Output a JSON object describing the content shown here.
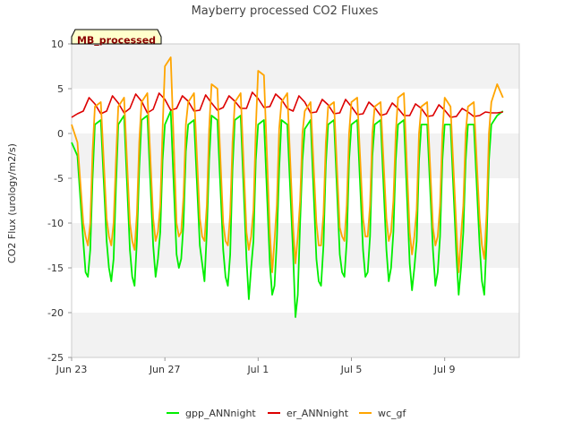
{
  "chart_data": {
    "type": "line",
    "title": "Mayberry processed CO2 Fluxes",
    "ylabel": "CO2 Flux (urology/m2/s)",
    "xlabel": "",
    "badge": "MB_processed",
    "x_start": "2016-06-23",
    "ylim": [
      -25,
      10
    ],
    "xlim": [
      0,
      19.2
    ],
    "yticks": [
      -25,
      -20,
      -15,
      -10,
      -5,
      0,
      5,
      10
    ],
    "xticks": [
      {
        "x": 0,
        "label": "Jun 23"
      },
      {
        "x": 4,
        "label": "Jun 27"
      },
      {
        "x": 8,
        "label": "Jul 1"
      },
      {
        "x": 12,
        "label": "Jul 5"
      },
      {
        "x": 16,
        "label": "Jul 9"
      }
    ],
    "grid": "alternating horizontal bands",
    "legend_position": "bottom",
    "colors": {
      "gpp": "#00ee00",
      "er": "#dd0000",
      "wc": "#ffa500"
    },
    "series": [
      {
        "name": "gpp_ANNnight",
        "color": "#00ee00",
        "x": [
          0.0,
          0.25,
          0.5,
          0.6,
          0.7,
          0.8,
          0.9,
          1.0,
          1.25,
          1.5,
          1.6,
          1.7,
          1.8,
          1.9,
          2.0,
          2.25,
          2.5,
          2.6,
          2.7,
          2.8,
          2.9,
          3.0,
          3.25,
          3.5,
          3.6,
          3.7,
          3.8,
          3.9,
          4.0,
          4.25,
          4.5,
          4.6,
          4.7,
          4.8,
          4.9,
          5.0,
          5.25,
          5.5,
          5.6,
          5.7,
          5.8,
          5.9,
          6.0,
          6.25,
          6.5,
          6.6,
          6.7,
          6.8,
          6.9,
          7.0,
          7.25,
          7.5,
          7.6,
          7.7,
          7.8,
          7.9,
          8.0,
          8.25,
          8.5,
          8.6,
          8.7,
          8.8,
          8.9,
          9.0,
          9.25,
          9.5,
          9.6,
          9.7,
          9.8,
          9.9,
          10.0,
          10.25,
          10.5,
          10.6,
          10.7,
          10.8,
          10.9,
          11.0,
          11.25,
          11.5,
          11.6,
          11.7,
          11.8,
          11.9,
          12.0,
          12.25,
          12.5,
          12.6,
          12.7,
          12.8,
          12.9,
          13.0,
          13.25,
          13.5,
          13.6,
          13.7,
          13.8,
          13.9,
          14.0,
          14.25,
          14.5,
          14.6,
          14.7,
          14.8,
          14.9,
          15.0,
          15.25,
          15.5,
          15.6,
          15.7,
          15.8,
          15.9,
          16.0,
          16.25,
          16.5,
          16.6,
          16.7,
          16.8,
          16.9,
          17.0,
          17.25,
          17.5,
          17.6,
          17.7,
          17.8,
          17.9,
          18.0,
          18.25,
          18.5
        ],
        "values": [
          -1.0,
          -2.5,
          -12.0,
          -15.5,
          -16.0,
          -13.0,
          -5.0,
          1.0,
          1.5,
          -12.0,
          -15.0,
          -16.5,
          -14.0,
          -6.0,
          1.0,
          2.0,
          -13.0,
          -16.0,
          -17.0,
          -12.0,
          -4.0,
          1.5,
          2.0,
          -12.5,
          -16.0,
          -14.0,
          -11.0,
          -3.0,
          1.0,
          2.5,
          -13.5,
          -15.0,
          -14.0,
          -10.0,
          -2.0,
          1.0,
          1.5,
          -12.5,
          -14.5,
          -16.5,
          -11.0,
          -3.0,
          2.0,
          1.5,
          -13.0,
          -16.0,
          -17.0,
          -13.5,
          -4.0,
          1.5,
          2.0,
          -14.0,
          -18.5,
          -15.0,
          -12.0,
          -3.0,
          1.0,
          1.5,
          -14.5,
          -18.0,
          -17.0,
          -12.0,
          -4.0,
          1.5,
          1.0,
          -13.5,
          -20.5,
          -18.0,
          -10.0,
          -3.0,
          0.5,
          1.5,
          -14.0,
          -16.5,
          -17.0,
          -12.5,
          -3.5,
          1.0,
          1.5,
          -13.5,
          -15.5,
          -16.0,
          -12.0,
          -3.0,
          1.0,
          1.5,
          -13.0,
          -16.0,
          -15.5,
          -11.5,
          -2.5,
          1.0,
          1.5,
          -13.0,
          -16.5,
          -15.0,
          -11.0,
          -3.0,
          1.0,
          1.5,
          -14.5,
          -17.5,
          -15.0,
          -12.0,
          -3.0,
          1.0,
          1.0,
          -13.0,
          -17.0,
          -15.5,
          -11.5,
          -3.0,
          1.0,
          1.0,
          -13.5,
          -18.0,
          -15.0,
          -11.0,
          -3.0,
          1.0,
          1.0,
          -12.5,
          -16.5,
          -18.0,
          -12.0,
          -3.0,
          1.0,
          2.0,
          2.5
        ]
      },
      {
        "name": "er_ANNnight",
        "color": "#dd0000",
        "x": [
          0.0,
          0.25,
          0.5,
          0.75,
          1.0,
          1.25,
          1.5,
          1.75,
          2.0,
          2.25,
          2.5,
          2.75,
          3.0,
          3.25,
          3.5,
          3.75,
          4.0,
          4.25,
          4.5,
          4.75,
          5.0,
          5.25,
          5.5,
          5.75,
          6.0,
          6.25,
          6.5,
          6.75,
          7.0,
          7.25,
          7.5,
          7.75,
          8.0,
          8.25,
          8.5,
          8.75,
          9.0,
          9.25,
          9.5,
          9.75,
          10.0,
          10.25,
          10.5,
          10.75,
          11.0,
          11.25,
          11.5,
          11.75,
          12.0,
          12.25,
          12.5,
          12.75,
          13.0,
          13.25,
          13.5,
          13.75,
          14.0,
          14.25,
          14.5,
          14.75,
          15.0,
          15.25,
          15.5,
          15.75,
          16.0,
          16.25,
          16.5,
          16.75,
          17.0,
          17.25,
          17.5,
          17.75,
          18.0,
          18.25,
          18.5
        ],
        "values": [
          1.8,
          2.2,
          2.5,
          4.0,
          3.3,
          2.2,
          2.5,
          4.2,
          3.4,
          2.3,
          2.8,
          4.4,
          3.6,
          2.3,
          2.7,
          4.5,
          3.8,
          2.6,
          2.8,
          4.2,
          3.6,
          2.5,
          2.6,
          4.3,
          3.4,
          2.6,
          2.9,
          4.2,
          3.6,
          2.8,
          2.8,
          4.6,
          3.9,
          2.9,
          3.0,
          4.4,
          3.8,
          2.8,
          2.5,
          4.2,
          3.5,
          2.3,
          2.4,
          3.8,
          3.2,
          2.2,
          2.3,
          3.8,
          3.0,
          2.1,
          2.2,
          3.5,
          2.9,
          2.0,
          2.2,
          3.4,
          2.8,
          2.0,
          2.0,
          3.3,
          2.8,
          1.9,
          2.0,
          3.2,
          2.6,
          1.8,
          1.9,
          2.8,
          2.4,
          1.9,
          2.0,
          2.4,
          2.3,
          2.3,
          2.4
        ]
      },
      {
        "name": "wc_gf",
        "color": "#ffa500",
        "x": [
          0.0,
          0.25,
          0.5,
          0.6,
          0.7,
          0.8,
          0.9,
          1.0,
          1.25,
          1.5,
          1.6,
          1.7,
          1.8,
          1.9,
          2.0,
          2.25,
          2.5,
          2.6,
          2.7,
          2.8,
          2.9,
          3.0,
          3.25,
          3.5,
          3.6,
          3.7,
          3.8,
          3.9,
          4.0,
          4.25,
          4.5,
          4.6,
          4.7,
          4.8,
          4.9,
          5.0,
          5.25,
          5.5,
          5.6,
          5.7,
          5.8,
          5.9,
          6.0,
          6.25,
          6.5,
          6.6,
          6.7,
          6.8,
          6.9,
          7.0,
          7.25,
          7.5,
          7.6,
          7.7,
          7.8,
          7.9,
          8.0,
          8.25,
          8.5,
          8.6,
          8.7,
          8.8,
          8.9,
          9.0,
          9.25,
          9.5,
          9.6,
          9.7,
          9.8,
          9.9,
          10.0,
          10.25,
          10.5,
          10.6,
          10.7,
          10.8,
          10.9,
          11.0,
          11.25,
          11.5,
          11.6,
          11.7,
          11.8,
          11.9,
          12.0,
          12.25,
          12.5,
          12.6,
          12.7,
          12.8,
          12.9,
          13.0,
          13.25,
          13.5,
          13.6,
          13.7,
          13.8,
          13.9,
          14.0,
          14.25,
          14.5,
          14.6,
          14.7,
          14.8,
          14.9,
          15.0,
          15.25,
          15.5,
          15.6,
          15.7,
          15.8,
          15.9,
          16.0,
          16.25,
          16.5,
          16.6,
          16.7,
          16.8,
          16.9,
          17.0,
          17.25,
          17.5,
          17.6,
          17.7,
          17.8,
          17.9,
          18.0,
          18.25,
          18.5
        ],
        "values": [
          1.0,
          -1.0,
          -10.0,
          -11.5,
          -12.5,
          -10.0,
          -2.0,
          3.0,
          3.5,
          -9.5,
          -11.5,
          -12.5,
          -10.0,
          -3.0,
          3.0,
          4.0,
          -10.0,
          -12.0,
          -13.0,
          -9.0,
          -1.0,
          3.5,
          4.5,
          -9.5,
          -12.0,
          -11.0,
          -8.0,
          0.5,
          7.5,
          8.5,
          -10.0,
          -11.5,
          -11.0,
          -7.0,
          1.0,
          3.5,
          4.5,
          -9.5,
          -11.5,
          -12.0,
          -8.0,
          0.5,
          5.5,
          5.0,
          -10.0,
          -12.0,
          -12.5,
          -9.0,
          -1.0,
          3.5,
          4.5,
          -11.0,
          -13.0,
          -11.5,
          -8.5,
          0.5,
          7.0,
          6.5,
          -11.0,
          -15.5,
          -12.0,
          -8.0,
          0.5,
          3.5,
          4.5,
          -10.5,
          -14.5,
          -11.5,
          -7.5,
          0.0,
          2.5,
          3.5,
          -10.0,
          -12.5,
          -12.5,
          -9.0,
          -1.0,
          3.0,
          3.5,
          -10.5,
          -11.5,
          -12.0,
          -8.0,
          0.0,
          3.5,
          4.0,
          -9.5,
          -11.5,
          -11.5,
          -8.0,
          0.0,
          3.0,
          3.5,
          -9.5,
          -12.0,
          -11.0,
          -7.5,
          0.0,
          4.0,
          4.5,
          -11.0,
          -13.5,
          -11.5,
          -8.5,
          0.0,
          3.0,
          3.5,
          -10.5,
          -12.5,
          -11.5,
          -8.0,
          0.0,
          4.0,
          3.0,
          -10.5,
          -15.5,
          -11.5,
          -8.0,
          0.0,
          3.0,
          3.5,
          -9.5,
          -12.5,
          -14.0,
          -9.0,
          0.0,
          3.5,
          5.5,
          4.0
        ]
      }
    ]
  }
}
